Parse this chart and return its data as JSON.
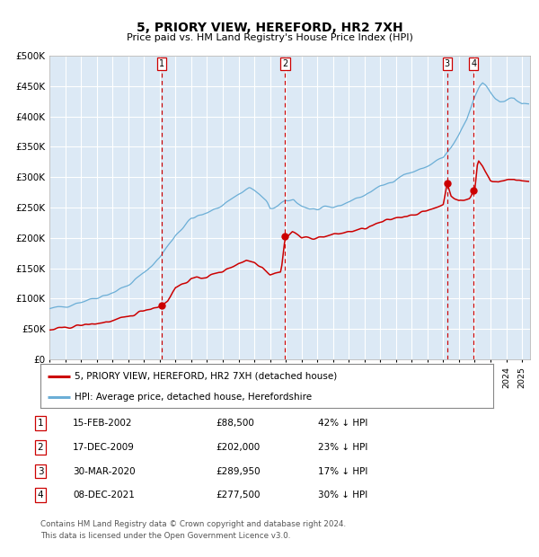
{
  "title": "5, PRIORY VIEW, HEREFORD, HR2 7XH",
  "subtitle": "Price paid vs. HM Land Registry's House Price Index (HPI)",
  "ylim": [
    0,
    500000
  ],
  "yticks": [
    0,
    50000,
    100000,
    150000,
    200000,
    250000,
    300000,
    350000,
    400000,
    450000,
    500000
  ],
  "ytick_labels": [
    "£0",
    "£50K",
    "£100K",
    "£150K",
    "£200K",
    "£250K",
    "£300K",
    "£350K",
    "£400K",
    "£450K",
    "£500K"
  ],
  "xlim_start": 1995.0,
  "xlim_end": 2025.5,
  "background_color": "#ffffff",
  "chart_bg_color": "#dce9f5",
  "grid_color": "#ffffff",
  "hpi_line_color": "#6baed6",
  "price_line_color": "#cc0000",
  "vline_color": "#cc0000",
  "transactions": [
    {
      "num": 1,
      "date_str": "15-FEB-2002",
      "year": 2002.12,
      "price": 88500,
      "pct": "42%"
    },
    {
      "num": 2,
      "date_str": "17-DEC-2009",
      "year": 2009.96,
      "price": 202000,
      "pct": "23%"
    },
    {
      "num": 3,
      "date_str": "30-MAR-2020",
      "year": 2020.25,
      "price": 289950,
      "pct": "17%"
    },
    {
      "num": 4,
      "date_str": "08-DEC-2021",
      "year": 2021.93,
      "price": 277500,
      "pct": "30%"
    }
  ],
  "legend_label_price": "5, PRIORY VIEW, HEREFORD, HR2 7XH (detached house)",
  "legend_label_hpi": "HPI: Average price, detached house, Herefordshire",
  "footer_line1": "Contains HM Land Registry data © Crown copyright and database right 2024.",
  "footer_line2": "This data is licensed under the Open Government Licence v3.0.",
  "hpi_anchors": [
    [
      1995.0,
      82000
    ],
    [
      1996.0,
      88000
    ],
    [
      1997.0,
      95000
    ],
    [
      1998.0,
      102000
    ],
    [
      1999.0,
      110000
    ],
    [
      2000.0,
      122000
    ],
    [
      2001.0,
      142000
    ],
    [
      2002.0,
      168000
    ],
    [
      2003.0,
      205000
    ],
    [
      2004.0,
      232000
    ],
    [
      2005.0,
      240000
    ],
    [
      2006.0,
      255000
    ],
    [
      2007.0,
      272000
    ],
    [
      2007.7,
      283000
    ],
    [
      2008.3,
      272000
    ],
    [
      2008.8,
      258000
    ],
    [
      2009.0,
      248000
    ],
    [
      2009.5,
      252000
    ],
    [
      2010.0,
      260000
    ],
    [
      2010.5,
      263000
    ],
    [
      2011.0,
      253000
    ],
    [
      2011.5,
      248000
    ],
    [
      2012.0,
      246000
    ],
    [
      2012.5,
      248000
    ],
    [
      2013.0,
      250000
    ],
    [
      2013.5,
      254000
    ],
    [
      2014.0,
      260000
    ],
    [
      2014.5,
      265000
    ],
    [
      2015.0,
      270000
    ],
    [
      2015.5,
      278000
    ],
    [
      2016.0,
      284000
    ],
    [
      2016.5,
      290000
    ],
    [
      2017.0,
      298000
    ],
    [
      2017.5,
      304000
    ],
    [
      2018.0,
      308000
    ],
    [
      2018.5,
      312000
    ],
    [
      2019.0,
      318000
    ],
    [
      2019.5,
      326000
    ],
    [
      2020.0,
      332000
    ],
    [
      2020.5,
      348000
    ],
    [
      2021.0,
      368000
    ],
    [
      2021.5,
      395000
    ],
    [
      2022.0,
      432000
    ],
    [
      2022.3,
      448000
    ],
    [
      2022.5,
      455000
    ],
    [
      2022.7,
      452000
    ],
    [
      2023.0,
      440000
    ],
    [
      2023.3,
      430000
    ],
    [
      2023.6,
      425000
    ],
    [
      2024.0,
      428000
    ],
    [
      2024.5,
      430000
    ],
    [
      2025.0,
      420000
    ]
  ],
  "price_anchors": [
    [
      1995.0,
      48000
    ],
    [
      1996.0,
      52000
    ],
    [
      1997.0,
      56000
    ],
    [
      1998.0,
      59000
    ],
    [
      1999.0,
      63000
    ],
    [
      2000.0,
      70000
    ],
    [
      2001.0,
      81000
    ],
    [
      2001.8,
      86000
    ],
    [
      2002.12,
      88500
    ],
    [
      2002.5,
      97000
    ],
    [
      2003.0,
      118000
    ],
    [
      2004.0,
      132000
    ],
    [
      2005.0,
      136000
    ],
    [
      2006.0,
      145000
    ],
    [
      2007.0,
      158000
    ],
    [
      2007.5,
      163000
    ],
    [
      2008.0,
      160000
    ],
    [
      2008.5,
      152000
    ],
    [
      2009.0,
      140000
    ],
    [
      2009.7,
      144000
    ],
    [
      2009.96,
      202000
    ],
    [
      2010.1,
      202000
    ],
    [
      2010.4,
      210000
    ],
    [
      2010.8,
      205000
    ],
    [
      2011.0,
      200000
    ],
    [
      2012.0,
      200000
    ],
    [
      2013.0,
      205000
    ],
    [
      2014.0,
      210000
    ],
    [
      2015.0,
      215000
    ],
    [
      2016.0,
      225000
    ],
    [
      2017.0,
      233000
    ],
    [
      2018.0,
      238000
    ],
    [
      2019.0,
      244000
    ],
    [
      2019.5,
      250000
    ],
    [
      2020.0,
      255000
    ],
    [
      2020.25,
      289950
    ],
    [
      2020.5,
      270000
    ],
    [
      2021.0,
      260000
    ],
    [
      2021.7,
      265000
    ],
    [
      2021.93,
      277500
    ],
    [
      2022.0,
      277500
    ],
    [
      2022.2,
      328000
    ],
    [
      2022.5,
      318000
    ],
    [
      2022.7,
      308000
    ],
    [
      2023.0,
      295000
    ],
    [
      2023.5,
      292000
    ],
    [
      2024.0,
      295000
    ],
    [
      2024.5,
      297000
    ],
    [
      2025.0,
      294000
    ]
  ]
}
